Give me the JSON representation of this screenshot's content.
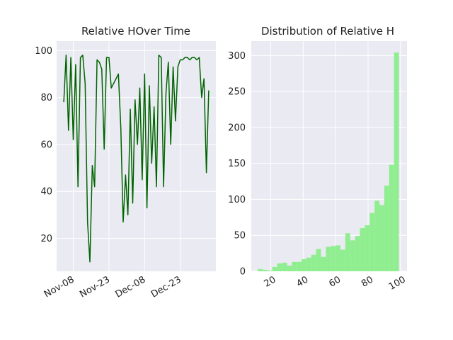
{
  "chart_data": [
    {
      "type": "line",
      "title": "Relative HOver Time",
      "xlabel": "",
      "ylabel": "",
      "x_tick_labels": [
        "Nov-08",
        "Nov-23",
        "Dec-08",
        "Dec-23"
      ],
      "x_tick_dates": [
        "2023-11-08",
        "2023-11-23",
        "2023-12-08",
        "2023-12-23"
      ],
      "xlim": [
        "2023-11-01",
        "2024-01-07"
      ],
      "ylim": [
        6,
        104
      ],
      "y_ticks": [
        20,
        40,
        60,
        80,
        100
      ],
      "grid": true,
      "line_color": "#006400",
      "series": [
        {
          "x": [
            "2023-11-04",
            "2023-11-05",
            "2023-11-06",
            "2023-11-07",
            "2023-11-08",
            "2023-11-09",
            "2023-11-10",
            "2023-11-11",
            "2023-11-12",
            "2023-11-13",
            "2023-11-14",
            "2023-11-15",
            "2023-11-16",
            "2023-11-17",
            "2023-11-18",
            "2023-11-19",
            "2023-11-20",
            "2023-11-21",
            "2023-11-22",
            "2023-11-23",
            "2023-11-24",
            "2023-11-25",
            "2023-11-26",
            "2023-11-27",
            "2023-11-28",
            "2023-11-29",
            "2023-11-30",
            "2023-12-01",
            "2023-12-02",
            "2023-12-03",
            "2023-12-04",
            "2023-12-05",
            "2023-12-06",
            "2023-12-07",
            "2023-12-08",
            "2023-12-09",
            "2023-12-10",
            "2023-12-11",
            "2023-12-12",
            "2023-12-13",
            "2023-12-14",
            "2023-12-15",
            "2023-12-16",
            "2023-12-17",
            "2023-12-18",
            "2023-12-19",
            "2023-12-20",
            "2023-12-21",
            "2023-12-22",
            "2023-12-23",
            "2023-12-24",
            "2023-12-25",
            "2023-12-26",
            "2023-12-27",
            "2023-12-28",
            "2023-12-29",
            "2023-12-30",
            "2023-12-31",
            "2024-01-01",
            "2024-01-02",
            "2024-01-03",
            "2024-01-04"
          ],
          "values": [
            78,
            98,
            66,
            97,
            62,
            94,
            42,
            97,
            98,
            86,
            27,
            10,
            51,
            42,
            96,
            95,
            92,
            58,
            97,
            97,
            84,
            86,
            88,
            90,
            67,
            27,
            47,
            30,
            75,
            35,
            79,
            60,
            84,
            45,
            90,
            33,
            85,
            52,
            76,
            42,
            98,
            97,
            42,
            82,
            95,
            60,
            93,
            70,
            93,
            96,
            96,
            97,
            97,
            96,
            97,
            97,
            96,
            97,
            80,
            88,
            48,
            83
          ]
        }
      ]
    },
    {
      "type": "bar",
      "title": "Distribution of Relative H",
      "xlabel": "",
      "ylabel": "",
      "x_ticks": [
        20,
        40,
        60,
        80,
        100
      ],
      "y_ticks": [
        0,
        50,
        100,
        150,
        200,
        250,
        300
      ],
      "xlim": [
        8,
        104
      ],
      "ylim": [
        0,
        320
      ],
      "grid": true,
      "bar_color": "#90ee90",
      "bin_edges": [
        12,
        15,
        18,
        21,
        24,
        27,
        30,
        33,
        36,
        39,
        42,
        45,
        48,
        51,
        54,
        57,
        60,
        63,
        66,
        69,
        72,
        75,
        78,
        81,
        84,
        87,
        90,
        93,
        96,
        99,
        102
      ],
      "values": [
        3,
        2,
        1,
        6,
        11,
        12,
        8,
        13,
        13,
        17,
        19,
        23,
        31,
        20,
        34,
        35,
        36,
        30,
        53,
        43,
        49,
        60,
        64,
        81,
        98,
        92,
        119,
        148,
        304,
        0
      ]
    }
  ]
}
